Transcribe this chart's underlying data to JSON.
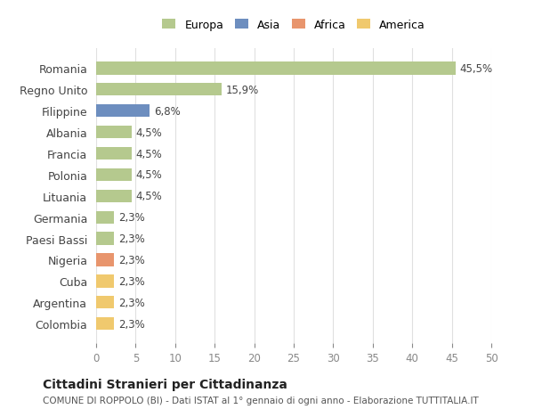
{
  "countries": [
    "Romania",
    "Regno Unito",
    "Filippine",
    "Albania",
    "Francia",
    "Polonia",
    "Lituania",
    "Germania",
    "Paesi Bassi",
    "Nigeria",
    "Cuba",
    "Argentina",
    "Colombia"
  ],
  "values": [
    45.5,
    15.9,
    6.8,
    4.5,
    4.5,
    4.5,
    4.5,
    2.3,
    2.3,
    2.3,
    2.3,
    2.3,
    2.3
  ],
  "labels": [
    "45,5%",
    "15,9%",
    "6,8%",
    "4,5%",
    "4,5%",
    "4,5%",
    "4,5%",
    "2,3%",
    "2,3%",
    "2,3%",
    "2,3%",
    "2,3%",
    "2,3%"
  ],
  "colors": [
    "#b5c98e",
    "#b5c98e",
    "#6d8ebf",
    "#b5c98e",
    "#b5c98e",
    "#b5c98e",
    "#b5c98e",
    "#b5c98e",
    "#b5c98e",
    "#e8956d",
    "#f0c96e",
    "#f0c96e",
    "#f0c96e"
  ],
  "legend_labels": [
    "Europa",
    "Asia",
    "Africa",
    "America"
  ],
  "legend_colors": [
    "#b5c98e",
    "#6d8ebf",
    "#e8956d",
    "#f0c96e"
  ],
  "title": "Cittadini Stranieri per Cittadinanza",
  "subtitle": "COMUNE DI ROPPOLO (BI) - Dati ISTAT al 1° gennaio di ogni anno - Elaborazione TUTTITALIA.IT",
  "xlim": [
    0,
    50
  ],
  "xticks": [
    0,
    5,
    10,
    15,
    20,
    25,
    30,
    35,
    40,
    45,
    50
  ],
  "background_color": "#ffffff",
  "grid_color": "#e0e0e0"
}
